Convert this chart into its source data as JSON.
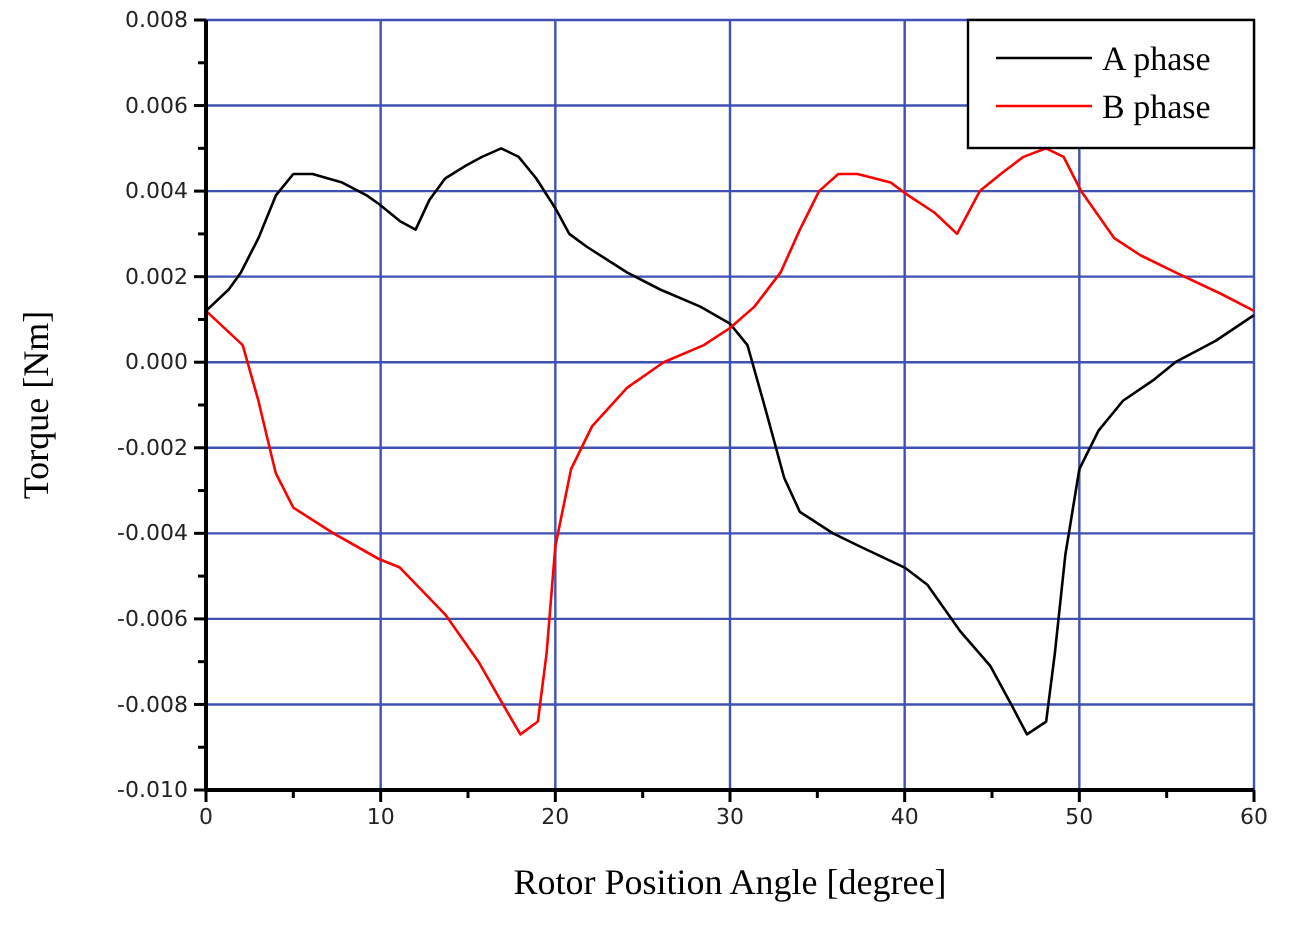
{
  "chart_data": {
    "type": "line",
    "xlabel": "Rotor Position Angle  [degree]",
    "ylabel": "Torque  [Nm]",
    "xlim": [
      0,
      60
    ],
    "ylim": [
      -0.01,
      0.008
    ],
    "xticks": [
      0,
      {
        "value": 5,
        "label": null
      },
      10,
      {
        "value": 15,
        "label": null
      },
      20,
      {
        "value": 25,
        "label": null
      },
      30,
      {
        "value": 35,
        "label": null
      },
      40,
      {
        "value": 45,
        "label": null
      },
      50,
      {
        "value": 55,
        "label": null
      },
      60
    ],
    "yticks": [
      {
        "value": -0.01,
        "label": "-0.010"
      },
      {
        "value": -0.009,
        "label": null
      },
      {
        "value": -0.008,
        "label": "-0.008"
      },
      {
        "value": -0.007,
        "label": null
      },
      {
        "value": -0.006,
        "label": "-0.006"
      },
      {
        "value": -0.005,
        "label": null
      },
      {
        "value": -0.004,
        "label": "-0.004"
      },
      {
        "value": -0.003,
        "label": null
      },
      {
        "value": -0.002,
        "label": "-0.002"
      },
      {
        "value": -0.001,
        "label": null
      },
      {
        "value": 0,
        "label": "0.000"
      },
      {
        "value": 0.001,
        "label": null
      },
      {
        "value": 0.002,
        "label": "0.002"
      },
      {
        "value": 0.003,
        "label": null
      },
      {
        "value": 0.004,
        "label": "0.004"
      },
      {
        "value": 0.005,
        "label": null
      },
      {
        "value": 0.006,
        "label": "0.006"
      },
      {
        "value": 0.007,
        "label": null
      },
      {
        "value": 0.008,
        "label": "0.008"
      }
    ],
    "grid": true,
    "legend": "top right",
    "marker": "none",
    "line_style": "solid",
    "series": [
      {
        "name": "A phase",
        "color": "#000000",
        "x": [
          0,
          1.3,
          2.0,
          3.0,
          4.0,
          5.0,
          6.1,
          7.8,
          9.2,
          9.9,
          11.1,
          12.0,
          12.8,
          13.7,
          14.9,
          15.8,
          16.9,
          17.9,
          18.9,
          20.0,
          20.8,
          21.8,
          24.1,
          26.0,
          28.3,
          30.0,
          31.0,
          32.1,
          33.1,
          34.0,
          35.9,
          37.4,
          40.0,
          41.3,
          43.2,
          44.9,
          46.1,
          47.0,
          48.1,
          48.6,
          49.2,
          50.0,
          51.1,
          52.5,
          54.3,
          55.5,
          57.8,
          60.0
        ],
        "values": [
          0.0012,
          0.0017,
          0.0021,
          0.0029,
          0.0039,
          0.0044,
          0.0044,
          0.0042,
          0.0039,
          0.0037,
          0.0033,
          0.0031,
          0.0038,
          0.0043,
          0.0046,
          0.0048,
          0.005,
          0.0048,
          0.0043,
          0.0036,
          0.003,
          0.0027,
          0.0021,
          0.0017,
          0.0013,
          0.0009,
          0.0004,
          -0.0012,
          -0.0027,
          -0.0035,
          -0.004,
          -0.0043,
          -0.0048,
          -0.0052,
          -0.0063,
          -0.0071,
          -0.008,
          -0.0087,
          -0.0084,
          -0.0068,
          -0.0045,
          -0.0025,
          -0.0016,
          -0.0009,
          -0.0004,
          0.0,
          0.0005,
          0.0011
        ]
      },
      {
        "name": "B phase",
        "color": "#ff0000",
        "x": [
          0,
          2.1,
          3.0,
          3.7,
          4.0,
          5.0,
          7.3,
          9.9,
          11.1,
          13.7,
          15.6,
          17.0,
          18.0,
          19.0,
          19.5,
          20.0,
          20.9,
          22.1,
          24.1,
          26.2,
          28.5,
          30.0,
          31.4,
          32.9,
          34.0,
          35.1,
          36.2,
          37.3,
          39.2,
          40.2,
          41.7,
          43.0,
          44.3,
          45.5,
          46.8,
          48.1,
          49.1,
          50.1,
          52.0,
          53.5,
          55.5,
          58.1,
          60.0
        ],
        "values": [
          0.0012,
          0.0004,
          -0.0009,
          -0.0021,
          -0.0026,
          -0.0034,
          -0.004,
          -0.0046,
          -0.0048,
          -0.0059,
          -0.007,
          -0.008,
          -0.0087,
          -0.0084,
          -0.0068,
          -0.0043,
          -0.0025,
          -0.0015,
          -0.0006,
          0.0,
          0.0004,
          0.0008,
          0.0013,
          0.0021,
          0.0031,
          0.004,
          0.0044,
          0.0044,
          0.0042,
          0.0039,
          0.0035,
          0.003,
          0.004,
          0.0044,
          0.0048,
          0.005,
          0.0048,
          0.004,
          0.0029,
          0.0025,
          0.0021,
          0.0016,
          0.0012
        ]
      }
    ]
  }
}
